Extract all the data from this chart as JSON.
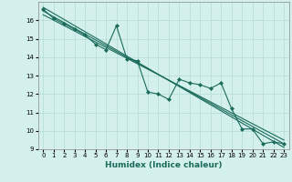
{
  "xlabel": "Humidex (Indice chaleur)",
  "bg_color": "#d4f0ec",
  "grid_color": "#b8ddd8",
  "line_color": "#1a6b5a",
  "xlim": [
    -0.5,
    23.5
  ],
  "ylim": [
    9,
    17
  ],
  "xticks": [
    0,
    1,
    2,
    3,
    4,
    5,
    6,
    7,
    8,
    9,
    10,
    11,
    12,
    13,
    14,
    15,
    16,
    17,
    18,
    19,
    20,
    21,
    22,
    23
  ],
  "yticks": [
    9,
    10,
    11,
    12,
    13,
    14,
    15,
    16
  ],
  "scatter_x": [
    0,
    1,
    2,
    3,
    4,
    5,
    6,
    7,
    8,
    9,
    10,
    11,
    12,
    13,
    14,
    15,
    16,
    17,
    18,
    19,
    20,
    21,
    22,
    23
  ],
  "scatter_y": [
    16.6,
    16.1,
    15.8,
    15.5,
    15.2,
    14.7,
    14.4,
    15.7,
    13.9,
    13.8,
    12.1,
    12.0,
    11.7,
    12.8,
    12.6,
    12.5,
    12.3,
    12.6,
    11.2,
    10.1,
    10.1,
    9.3,
    9.4,
    9.3
  ],
  "line1_x": [
    0,
    23
  ],
  "line1_y": [
    16.5,
    9.3
  ],
  "line2_x": [
    0,
    23
  ],
  "line2_y": [
    16.3,
    9.5
  ],
  "line3_x": [
    0,
    23
  ],
  "line3_y": [
    16.7,
    9.1
  ],
  "marker": "D",
  "markersize": 2.0,
  "linewidth": 0.8,
  "tick_fontsize": 5.0,
  "xlabel_fontsize": 6.5
}
